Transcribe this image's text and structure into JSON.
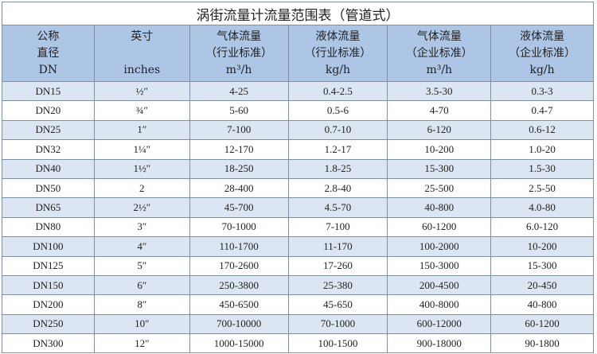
{
  "title": "涡街流量计流量范围表（管道式）",
  "headers": [
    {
      "l1": "公称",
      "l2": "直径",
      "l3": "DN"
    },
    {
      "l1": "英寸",
      "l2": "",
      "l3": "inches"
    },
    {
      "l1": "气体流量",
      "l2": "（行业标准）",
      "l3": "m³/h"
    },
    {
      "l1": "液体流量",
      "l2": "（行业标准）",
      "l3": "kg/h"
    },
    {
      "l1": "气体流量",
      "l2": "（企业标准）",
      "l3": "m³/h"
    },
    {
      "l1": "液体流量",
      "l2": "（企业标准）",
      "l3": "kg/h"
    }
  ],
  "rows": [
    [
      "DN15",
      "½″",
      "4-25",
      "0.4-2.5",
      "3.5-30",
      "0.3-3"
    ],
    [
      "DN20",
      "¾″",
      "5-60",
      "0.5-6",
      "4-70",
      "0.4-7"
    ],
    [
      "DN25",
      "1″",
      "7-100",
      "0.7-10",
      "6-120",
      "0.6-12"
    ],
    [
      "DN32",
      "1¼″",
      "12-170",
      "1.2-17",
      "10-200",
      "1.0-20"
    ],
    [
      "DN40",
      "1½″",
      "18-250",
      "1.8-25",
      "15-300",
      "1.5-30"
    ],
    [
      "DN50",
      "2",
      "28-400",
      "2.8-40",
      "25-500",
      "2.5-50"
    ],
    [
      "DN65",
      "2½″",
      "45-700",
      "4.5-70",
      "40-800",
      "4.0-80"
    ],
    [
      "DN80",
      "3″",
      "70-1000",
      "7-100",
      "60-1200",
      "6.0-120"
    ],
    [
      "DN100",
      "4″",
      "110-1700",
      "11-170",
      "100-2000",
      "10-200"
    ],
    [
      "DN125",
      "5″",
      "170-2600",
      "17-260",
      "150-3000",
      "15-300"
    ],
    [
      "DN150",
      "6″",
      "250-3800",
      "25-380",
      "200-4500",
      "20-450"
    ],
    [
      "DN200",
      "8″",
      "450-6500",
      "45-650",
      "400-8000",
      "40-800"
    ],
    [
      "DN250",
      "10″",
      "700-10000",
      "70-1000",
      "600-12000",
      "60-1200"
    ],
    [
      "DN300",
      "12″",
      "1000-15000",
      "100-1500",
      "900-18000",
      "90-1800"
    ]
  ]
}
